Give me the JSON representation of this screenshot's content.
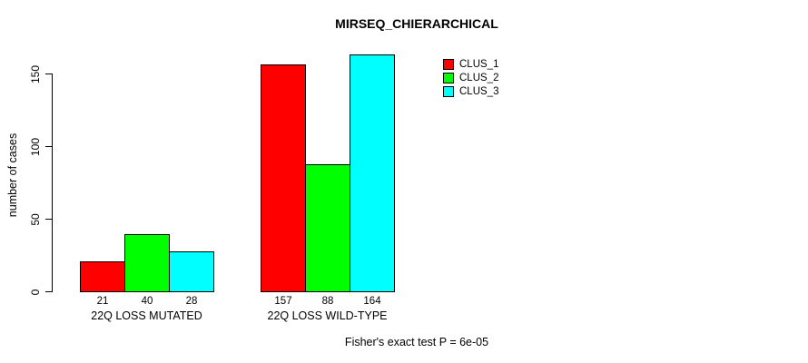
{
  "title": "MIRSEQ_CHIERARCHICAL",
  "y_axis": {
    "label": "number of cases",
    "ticks": [
      0,
      50,
      100,
      150
    ]
  },
  "footer": "Fisher's exact test P = 6e-05",
  "legend": {
    "items": [
      {
        "label": "CLUS_1",
        "color": "#ff0000"
      },
      {
        "label": "CLUS_2",
        "color": "#00ff00"
      },
      {
        "label": "CLUS_3",
        "color": "#00ffff"
      }
    ]
  },
  "chart_data": {
    "type": "bar",
    "title": "MIRSEQ_CHIERARCHICAL",
    "categories": [
      "22Q LOSS MUTATED",
      "22Q LOSS WILD-TYPE"
    ],
    "series": [
      {
        "name": "CLUS_1",
        "color": "#ff0000",
        "values": [
          21,
          157
        ]
      },
      {
        "name": "CLUS_2",
        "color": "#00ff00",
        "values": [
          40,
          88
        ]
      },
      {
        "name": "CLUS_3",
        "color": "#00ffff",
        "values": [
          28,
          164
        ]
      }
    ],
    "bar_value_labels_shown": true,
    "xlabel": "",
    "ylabel": "number of cases",
    "yticks": [
      0,
      50,
      100,
      150
    ],
    "ylim": [
      0,
      170
    ],
    "grid": false,
    "bar_border_color": "#000000",
    "legend_position": "top-right",
    "annotation": "Fisher's exact test P = 6e-05"
  }
}
